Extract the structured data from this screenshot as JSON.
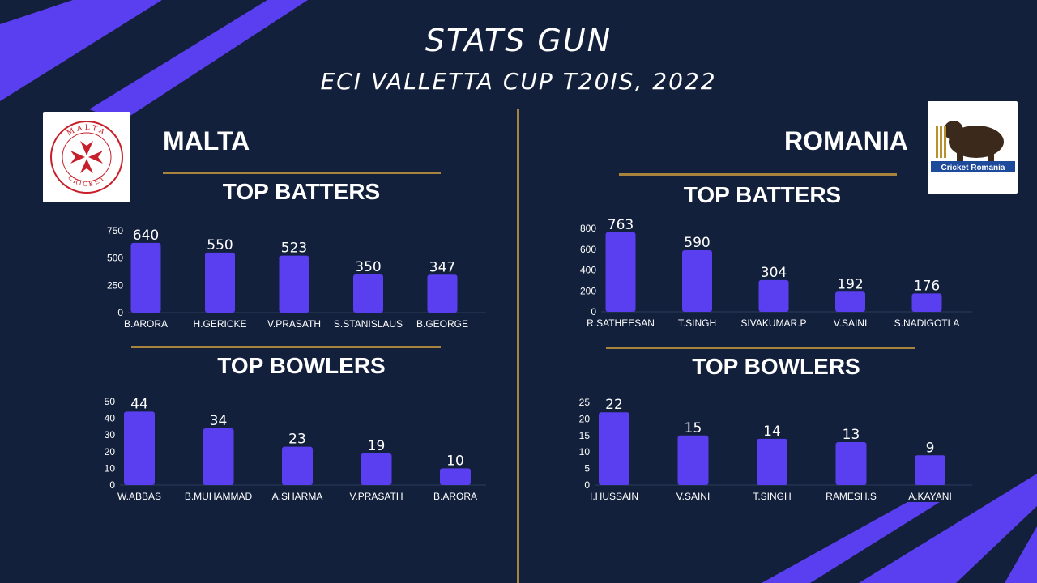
{
  "header": {
    "title": "STATS GUN",
    "subtitle": "ECI VALLETTA CUP T20IS, 2022"
  },
  "colors": {
    "background": "#12203c",
    "bar": "#5a3ff0",
    "accent_stripe": "#5a3ff0",
    "gold": "#a8833e"
  },
  "teams": {
    "left": {
      "name": "MALTA",
      "logo": {
        "icon": "maltese-cross-icon",
        "text_top": "MALTA",
        "text_bottom": "CRICKET"
      },
      "batters_title": "TOP BATTERS",
      "bowlers_title": "TOP BOWLERS"
    },
    "right": {
      "name": "ROMANIA",
      "logo": {
        "icon": "bear-cricket-icon",
        "text": "Cricket Romania"
      },
      "batters_title": "TOP BATTERS",
      "bowlers_title": "TOP BOWLERS"
    }
  },
  "chart_data": [
    {
      "type": "bar",
      "title": "TOP BATTERS",
      "team": "MALTA",
      "categories": [
        "B.ARORA",
        "H.GERICKE",
        "V.PRASATH",
        "S.STANISLAUS",
        "B.GEORGE"
      ],
      "values": [
        640,
        550,
        523,
        350,
        347
      ],
      "ylim": [
        0,
        750
      ],
      "yticks": [
        0,
        250,
        500,
        750
      ]
    },
    {
      "type": "bar",
      "title": "TOP BOWLERS",
      "team": "MALTA",
      "categories": [
        "W.ABBAS",
        "B.MUHAMMAD",
        "A.SHARMA",
        "V.PRASATH",
        "B.ARORA"
      ],
      "values": [
        44,
        34,
        23,
        19,
        10
      ],
      "ylim": [
        0,
        50
      ],
      "yticks": [
        0,
        10,
        20,
        30,
        40,
        50
      ]
    },
    {
      "type": "bar",
      "title": "TOP BATTERS",
      "team": "ROMANIA",
      "categories": [
        "R.SATHEESAN",
        "T.SINGH",
        "SIVAKUMAR.P",
        "V.SAINI",
        "S.NADIGOTLA"
      ],
      "values": [
        763,
        590,
        304,
        192,
        176
      ],
      "ylim": [
        0,
        800
      ],
      "yticks": [
        0,
        200,
        400,
        600,
        800
      ]
    },
    {
      "type": "bar",
      "title": "TOP BOWLERS",
      "team": "ROMANIA",
      "categories": [
        "I.HUSSAIN",
        "V.SAINI",
        "T.SINGH",
        "RAMESH.S",
        "A.KAYANI"
      ],
      "values": [
        22,
        15,
        14,
        13,
        9
      ],
      "ylim": [
        0,
        25
      ],
      "yticks": [
        0,
        5,
        10,
        15,
        20,
        25
      ]
    }
  ]
}
